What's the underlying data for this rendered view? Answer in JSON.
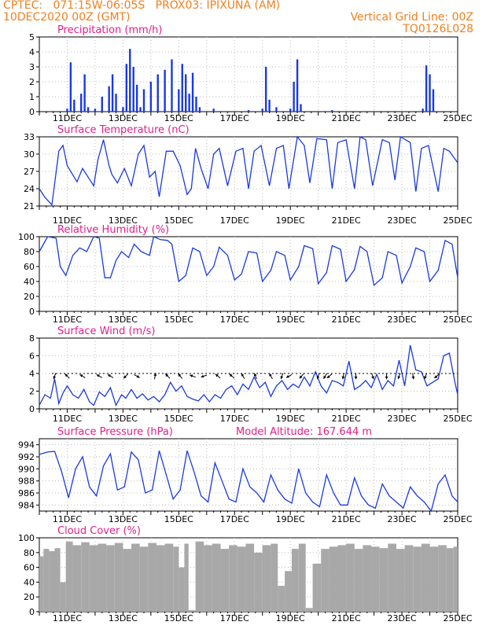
{
  "header": {
    "line1_left": "CPTEC:   071:15W-06:05S   PROX03: IPIXUNA (AM)",
    "line2_left": "10DEC2020 00Z (GMT)",
    "line2_right": "Vertical Grid Line: 00Z",
    "line3_right": "TQ0126L028"
  },
  "colors": {
    "header": "#f08020",
    "titles": "#e0208a",
    "series": "#1a3ae0",
    "cloud": "#a8a8a8",
    "grid": "#bbbbbb"
  },
  "chart_data": [
    {
      "id": "precip",
      "type": "bar",
      "title": "Precipitation (mm/h)",
      "ylim": [
        0,
        5
      ],
      "yticks": [
        0,
        1,
        2,
        3,
        4,
        5
      ],
      "x_range": [
        "10DEC2020 00Z",
        "25DEC2020 00Z"
      ],
      "x_tick_labels": [
        "11DEC",
        "13DEC",
        "15DEC",
        "17DEC",
        "19DEC",
        "21DEC",
        "23DEC",
        "25DEC"
      ],
      "x": [
        "11DEC00Z",
        "11DEC03Z",
        "11DEC06Z",
        "11DEC12Z",
        "11DEC15Z",
        "11DEC18Z",
        "12DEC00Z",
        "12DEC06Z",
        "12DEC12Z",
        "12DEC15Z",
        "12DEC18Z",
        "13DEC00Z",
        "13DEC03Z",
        "13DEC06Z",
        "13DEC09Z",
        "13DEC12Z",
        "13DEC15Z",
        "13DEC18Z",
        "14DEC00Z",
        "14DEC06Z",
        "14DEC12Z",
        "14DEC18Z",
        "15DEC00Z",
        "15DEC03Z",
        "15DEC06Z",
        "15DEC09Z",
        "15DEC12Z",
        "15DEC15Z",
        "15DEC18Z",
        "16DEC06Z",
        "17DEC12Z",
        "18DEC00Z",
        "18DEC03Z",
        "18DEC06Z",
        "18DEC12Z",
        "19DEC00Z",
        "19DEC03Z",
        "19DEC06Z",
        "19DEC09Z",
        "20DEC12Z",
        "23DEC18Z",
        "23DEC21Z",
        "24DEC00Z",
        "24DEC03Z"
      ],
      "values": [
        0.2,
        3.3,
        0.8,
        1.2,
        2.5,
        0.3,
        0.2,
        1.0,
        1.7,
        2.5,
        1.2,
        0.3,
        3.2,
        4.2,
        3.0,
        1.8,
        0.3,
        1.5,
        2.0,
        2.5,
        2.8,
        3.5,
        1.5,
        3.2,
        2.5,
        1.2,
        2.6,
        1.0,
        0.3,
        0.2,
        0.1,
        0.2,
        3.0,
        0.8,
        0.3,
        0.2,
        2.0,
        3.5,
        0.5,
        0.1,
        0.2,
        3.1,
        2.5,
        1.5
      ]
    },
    {
      "id": "temp",
      "type": "line",
      "title": "Surface Temperature (nC)",
      "ylim": [
        21,
        33
      ],
      "yticks": [
        21,
        24,
        27,
        30,
        33
      ],
      "x_range": [
        "10DEC2020 00Z",
        "25DEC2020 00Z"
      ],
      "x_tick_labels": [
        "11DEC",
        "13DEC",
        "15DEC",
        "17DEC",
        "19DEC",
        "21DEC",
        "23DEC",
        "25DEC"
      ],
      "x_days": [
        0.0,
        0.2,
        0.45,
        0.7,
        0.85,
        1.0,
        1.25,
        1.35,
        1.55,
        1.75,
        1.95,
        2.1,
        2.3,
        2.5,
        2.6,
        2.8,
        3.05,
        3.3,
        3.55,
        3.75,
        3.95,
        4.15,
        4.3,
        4.55,
        4.8,
        5.05,
        5.3,
        5.45,
        5.6,
        5.8,
        6.05,
        6.25,
        6.45,
        6.75,
        7.05,
        7.3,
        7.5,
        7.7,
        7.95,
        8.25,
        8.5,
        8.75,
        8.95,
        9.25,
        9.5,
        9.7,
        9.95,
        10.3,
        10.5,
        10.7,
        11.0,
        11.3,
        11.5,
        11.7,
        11.95,
        12.3,
        12.55,
        12.75,
        12.95,
        13.3,
        13.5,
        13.7,
        13.95,
        14.3,
        14.5,
        14.7,
        15.0
      ],
      "values": [
        24.0,
        22.5,
        21.2,
        30.5,
        31.5,
        28.0,
        26.0,
        25.2,
        27.5,
        26.0,
        24.5,
        29.0,
        32.5,
        28.0,
        26.5,
        25.0,
        27.5,
        24.5,
        30.0,
        31.5,
        26.0,
        27.0,
        22.6,
        30.5,
        30.5,
        28.0,
        23.0,
        24.0,
        31.0,
        27.5,
        24.0,
        30.0,
        31.0,
        24.5,
        30.5,
        31.0,
        24.0,
        30.5,
        31.5,
        24.5,
        31.0,
        31.5,
        24.0,
        33.0,
        31.5,
        25.0,
        32.7,
        32.5,
        24.0,
        32.0,
        32.5,
        24.0,
        33.0,
        32.5,
        24.5,
        32.5,
        32.0,
        25.5,
        33.0,
        32.0,
        23.5,
        31.0,
        31.5,
        23.5,
        31.0,
        30.5,
        28.5
      ]
    },
    {
      "id": "rh",
      "type": "line",
      "title": "Relative Humidity (%)",
      "ylim": [
        0,
        100
      ],
      "yticks": [
        0,
        20,
        40,
        60,
        80,
        100
      ],
      "x_range": [
        "10DEC2020 00Z",
        "25DEC2020 00Z"
      ],
      "x_tick_labels": [
        "11DEC",
        "13DEC",
        "15DEC",
        "17DEC",
        "19DEC",
        "21DEC",
        "23DEC",
        "25DEC"
      ],
      "x_days": [
        0.0,
        0.3,
        0.6,
        0.75,
        0.95,
        1.2,
        1.45,
        1.7,
        1.95,
        2.15,
        2.35,
        2.55,
        2.75,
        2.95,
        3.2,
        3.4,
        3.65,
        3.95,
        4.1,
        4.35,
        4.6,
        4.75,
        5.0,
        5.25,
        5.5,
        5.75,
        6.0,
        6.25,
        6.45,
        6.75,
        7.0,
        7.25,
        7.5,
        7.8,
        8.0,
        8.3,
        8.5,
        8.8,
        9.0,
        9.3,
        9.5,
        9.8,
        10.0,
        10.3,
        10.5,
        10.8,
        11.0,
        11.3,
        11.5,
        11.75,
        12.0,
        12.3,
        12.5,
        12.8,
        13.0,
        13.3,
        13.5,
        13.8,
        14.0,
        14.3,
        14.55,
        14.8,
        15.0
      ],
      "values": [
        80,
        100,
        98,
        60,
        48,
        75,
        85,
        80,
        100,
        98,
        45,
        45,
        68,
        80,
        72,
        90,
        80,
        75,
        100,
        96,
        95,
        90,
        40,
        48,
        85,
        80,
        48,
        60,
        86,
        75,
        42,
        50,
        80,
        78,
        40,
        55,
        80,
        75,
        42,
        60,
        88,
        84,
        37,
        52,
        88,
        83,
        40,
        56,
        87,
        80,
        35,
        45,
        80,
        75,
        38,
        60,
        85,
        80,
        40,
        55,
        95,
        90,
        45
      ]
    },
    {
      "id": "wind",
      "type": "line",
      "title": "Surface Wind (m/s)",
      "ylim": [
        0,
        8
      ],
      "yticks": [
        0,
        2,
        4,
        6,
        8
      ],
      "x_range": [
        "10DEC2020 00Z",
        "25DEC2020 00Z"
      ],
      "x_tick_labels": [
        "11DEC",
        "13DEC",
        "15DEC",
        "17DEC",
        "19DEC",
        "21DEC",
        "23DEC",
        "25DEC"
      ],
      "x_days": [
        0.0,
        0.2,
        0.4,
        0.55,
        0.7,
        0.85,
        1.0,
        1.2,
        1.4,
        1.6,
        1.8,
        1.95,
        2.15,
        2.35,
        2.55,
        2.75,
        2.95,
        3.1,
        3.3,
        3.5,
        3.7,
        3.9,
        4.1,
        4.3,
        4.5,
        4.7,
        4.9,
        5.1,
        5.3,
        5.5,
        5.7,
        5.9,
        6.1,
        6.3,
        6.5,
        6.7,
        6.9,
        7.1,
        7.3,
        7.5,
        7.7,
        7.9,
        8.1,
        8.3,
        8.5,
        8.7,
        8.9,
        9.1,
        9.3,
        9.5,
        9.7,
        9.9,
        10.1,
        10.3,
        10.5,
        10.7,
        10.9,
        11.1,
        11.3,
        11.5,
        11.7,
        11.9,
        12.1,
        12.3,
        12.5,
        12.7,
        12.9,
        13.1,
        13.3,
        13.5,
        13.7,
        13.9,
        14.1,
        14.3,
        14.5,
        14.7,
        14.9,
        15.0
      ],
      "values": [
        0.4,
        1.6,
        1.2,
        3.4,
        0.6,
        1.8,
        2.6,
        1.6,
        1.2,
        2.2,
        0.8,
        0.4,
        1.9,
        1.4,
        2.4,
        0.4,
        1.6,
        1.2,
        2.2,
        1.2,
        1.7,
        1.0,
        1.4,
        0.8,
        1.6,
        3.0,
        2.0,
        2.6,
        1.4,
        1.1,
        0.9,
        1.6,
        0.8,
        1.6,
        1.2,
        2.2,
        2.6,
        1.6,
        2.8,
        2.2,
        3.6,
        2.4,
        3.0,
        1.4,
        2.6,
        3.2,
        2.2,
        2.8,
        2.4,
        3.6,
        2.6,
        4.2,
        2.6,
        1.8,
        3.2,
        3.0,
        2.6,
        5.4,
        2.2,
        2.6,
        3.2,
        2.4,
        3.9,
        2.2,
        3.2,
        2.6,
        5.5,
        2.6,
        7.2,
        4.4,
        4.2,
        2.6,
        3.0,
        3.4,
        6.0,
        6.3,
        3.0,
        1.6
      ],
      "arrows": [
        {
          "x_day": 0.55,
          "dir_deg": 200
        },
        {
          "x_day": 1.0,
          "dir_deg": 315
        },
        {
          "x_day": 1.55,
          "dir_deg": 300
        },
        {
          "x_day": 2.15,
          "dir_deg": 300
        },
        {
          "x_day": 2.55,
          "dir_deg": 300
        },
        {
          "x_day": 3.1,
          "dir_deg": 225
        },
        {
          "x_day": 3.5,
          "dir_deg": 120
        },
        {
          "x_day": 4.15,
          "dir_deg": 10
        },
        {
          "x_day": 4.6,
          "dir_deg": 315
        },
        {
          "x_day": 5.05,
          "dir_deg": 320
        },
        {
          "x_day": 5.5,
          "dir_deg": 290
        },
        {
          "x_day": 5.9,
          "dir_deg": 250
        },
        {
          "x_day": 6.4,
          "dir_deg": 310
        },
        {
          "x_day": 6.9,
          "dir_deg": 310
        },
        {
          "x_day": 7.3,
          "dir_deg": 330
        },
        {
          "x_day": 7.75,
          "dir_deg": 340
        },
        {
          "x_day": 8.3,
          "dir_deg": 330
        },
        {
          "x_day": 8.7,
          "dir_deg": 200
        },
        {
          "x_day": 8.95,
          "dir_deg": 240
        },
        {
          "x_day": 9.4,
          "dir_deg": 220
        },
        {
          "x_day": 10.0,
          "dir_deg": 200
        },
        {
          "x_day": 10.25,
          "dir_deg": 210
        },
        {
          "x_day": 10.4,
          "dir_deg": 230
        },
        {
          "x_day": 10.9,
          "dir_deg": 190
        },
        {
          "x_day": 11.35,
          "dir_deg": 180
        },
        {
          "x_day": 11.95,
          "dir_deg": 160
        },
        {
          "x_day": 12.45,
          "dir_deg": 180
        },
        {
          "x_day": 12.9,
          "dir_deg": 200
        },
        {
          "x_day": 13.4,
          "dir_deg": 170
        },
        {
          "x_day": 13.85,
          "dir_deg": 200
        },
        {
          "x_day": 14.25,
          "dir_deg": 230
        }
      ]
    },
    {
      "id": "pres",
      "type": "line",
      "title": "Surface Pressure (hPa)",
      "annotation": "Model Altitude: 167.644 m",
      "ylim": [
        983,
        995
      ],
      "yticks": [
        984,
        986,
        988,
        990,
        992,
        994
      ],
      "x_range": [
        "10DEC2020 00Z",
        "25DEC2020 00Z"
      ],
      "x_tick_labels": [
        "11DEC",
        "13DEC",
        "15DEC",
        "17DEC",
        "19DEC",
        "21DEC",
        "23DEC",
        "25DEC"
      ],
      "x_days": [
        0.0,
        0.3,
        0.55,
        0.8,
        1.05,
        1.3,
        1.55,
        1.8,
        2.05,
        2.3,
        2.55,
        2.8,
        3.05,
        3.3,
        3.55,
        3.8,
        4.05,
        4.3,
        4.55,
        4.8,
        5.05,
        5.3,
        5.55,
        5.8,
        6.05,
        6.3,
        6.55,
        6.8,
        7.05,
        7.3,
        7.55,
        7.8,
        8.05,
        8.3,
        8.55,
        8.8,
        9.05,
        9.3,
        9.55,
        9.8,
        10.05,
        10.3,
        10.55,
        10.8,
        11.05,
        11.3,
        11.55,
        11.8,
        12.05,
        12.3,
        12.55,
        12.8,
        13.05,
        13.3,
        13.55,
        13.8,
        14.05,
        14.3,
        14.55,
        14.8,
        15.0
      ],
      "values": [
        992.4,
        992.8,
        992.9,
        989.5,
        985.2,
        990.0,
        992.0,
        987.0,
        985.5,
        990.5,
        992.5,
        986.5,
        987.0,
        992.8,
        991.5,
        986.0,
        986.5,
        993.0,
        989.0,
        985.0,
        986.5,
        993.0,
        989.5,
        985.5,
        984.5,
        991.0,
        988.0,
        985.0,
        984.5,
        990.0,
        987.0,
        986.0,
        984.5,
        989.0,
        986.5,
        985.0,
        984.3,
        990.0,
        986.0,
        984.5,
        983.7,
        989.0,
        986.0,
        984.0,
        984.0,
        988.5,
        985.5,
        984.0,
        983.5,
        987.5,
        985.5,
        984.5,
        983.5,
        987.0,
        985.5,
        984.5,
        983.0,
        987.5,
        989.0,
        985.5,
        984.5
      ]
    },
    {
      "id": "cloud",
      "type": "bar",
      "title": "Cloud Cover (%)",
      "ylim": [
        0,
        100
      ],
      "yticks": [
        0,
        20,
        40,
        60,
        80,
        100
      ],
      "x_range": [
        "10DEC2020 00Z",
        "25DEC2020 00Z"
      ],
      "x_tick_labels": [
        "11DEC",
        "13DEC",
        "15DEC",
        "17DEC",
        "19DEC",
        "21DEC",
        "23DEC",
        "25DEC"
      ],
      "x_days": [
        0.0,
        0.15,
        0.35,
        0.55,
        0.75,
        0.95,
        1.2,
        1.5,
        1.8,
        2.1,
        2.4,
        2.7,
        3.0,
        3.3,
        3.6,
        3.9,
        4.2,
        4.5,
        4.8,
        5.0,
        5.2,
        5.35,
        5.6,
        5.9,
        6.2,
        6.5,
        6.8,
        7.1,
        7.4,
        7.7,
        8.0,
        8.3,
        8.55,
        8.8,
        9.05,
        9.3,
        9.55,
        9.8,
        10.1,
        10.4,
        10.7,
        11.0,
        11.3,
        11.6,
        11.9,
        12.2,
        12.5,
        12.8,
        13.1,
        13.4,
        13.7,
        14.0,
        14.3,
        14.6,
        14.85
      ],
      "values": [
        75,
        85,
        82,
        86,
        40,
        95,
        90,
        94,
        90,
        92,
        90,
        93,
        85,
        92,
        88,
        93,
        90,
        92,
        88,
        60,
        92,
        2,
        95,
        90,
        92,
        85,
        90,
        88,
        92,
        80,
        90,
        92,
        35,
        55,
        85,
        92,
        5,
        65,
        85,
        88,
        90,
        92,
        85,
        90,
        88,
        86,
        92,
        85,
        90,
        88,
        92,
        88,
        90,
        86,
        88
      ]
    }
  ]
}
